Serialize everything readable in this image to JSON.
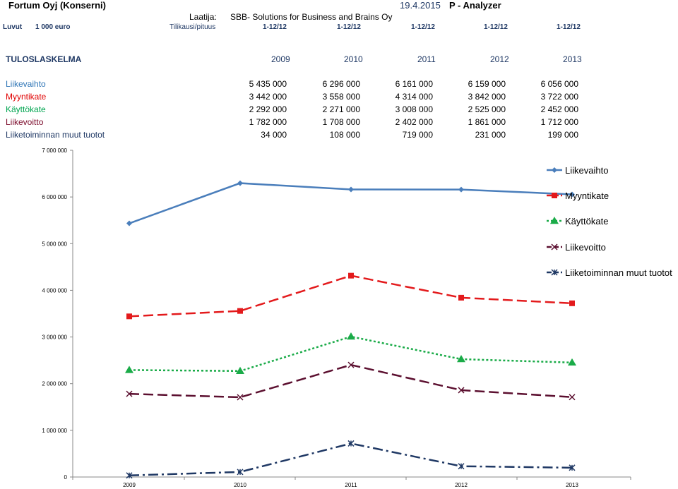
{
  "header": {
    "company": "Fortum Oyj (Konserni)",
    "date": "19.4.2015",
    "app": "P - Analyzer",
    "author_label": "Laatija:",
    "author": "SBB- Solutions for Business and Brains Oy",
    "units_label": "Luvut",
    "units": "1 000 euro",
    "period_label": "Tilikausi/pituus",
    "periods": [
      "1-12/12",
      "1-12/12",
      "1-12/12",
      "1-12/12",
      "1-12/12"
    ]
  },
  "table": {
    "title": "TULOSLASKELMA",
    "years": [
      "2009",
      "2010",
      "2011",
      "2012",
      "2013"
    ],
    "rows": [
      {
        "label": "Liikevaihto",
        "color": "#2e75b6",
        "values": [
          "5 435 000",
          "6 296 000",
          "6 161 000",
          "6 159 000",
          "6 056 000"
        ]
      },
      {
        "label": "Myyntikate",
        "color": "#e00000",
        "values": [
          "3 442 000",
          "3 558 000",
          "4 314 000",
          "3 842 000",
          "3 722 000"
        ]
      },
      {
        "label": "Käyttökate",
        "color": "#00a550",
        "values": [
          "2 292 000",
          "2 271 000",
          "3 008 000",
          "2 525 000",
          "2 452 000"
        ]
      },
      {
        "label": "Liikevoitto",
        "color": "#7b0a2a",
        "values": [
          "1 782 000",
          "1 708 000",
          "2 402 000",
          "1 861 000",
          "1 712 000"
        ]
      },
      {
        "label": "Liiketoiminnan muut tuotot",
        "color": "#1f3864",
        "values": [
          "34 000",
          "108 000",
          "719 000",
          "231 000",
          "199 000"
        ]
      }
    ]
  },
  "chart_data": {
    "type": "line",
    "x": [
      "2009",
      "2010",
      "2011",
      "2012",
      "2013"
    ],
    "ylim": [
      0,
      7000000
    ],
    "yticks": [
      "0",
      "1 000 000",
      "2 000 000",
      "3 000 000",
      "4 000 000",
      "5 000 000",
      "6 000 000",
      "7 000 000"
    ],
    "legend_position": "right",
    "series": [
      {
        "name": "Liikevaihto",
        "color": "#4a7ebb",
        "dash": "solid",
        "marker": "diamond",
        "values": [
          5435000,
          6296000,
          6161000,
          6159000,
          6056000
        ]
      },
      {
        "name": "Myyntikate",
        "color": "#e31a1c",
        "dash": "dashed",
        "marker": "square",
        "values": [
          3442000,
          3558000,
          4314000,
          3842000,
          3722000
        ]
      },
      {
        "name": "Käyttökate",
        "color": "#1aab48",
        "dash": "dotted",
        "marker": "triangle",
        "values": [
          2292000,
          2271000,
          3008000,
          2525000,
          2452000
        ]
      },
      {
        "name": "Liikevoitto",
        "color": "#5c1030",
        "dash": "dashed",
        "marker": "x",
        "values": [
          1782000,
          1708000,
          2402000,
          1861000,
          1712000
        ]
      },
      {
        "name": "Liiketoiminnan muut tuotot",
        "color": "#1f3864",
        "dash": "dashdot",
        "marker": "star",
        "values": [
          34000,
          108000,
          719000,
          231000,
          199000
        ]
      }
    ]
  }
}
